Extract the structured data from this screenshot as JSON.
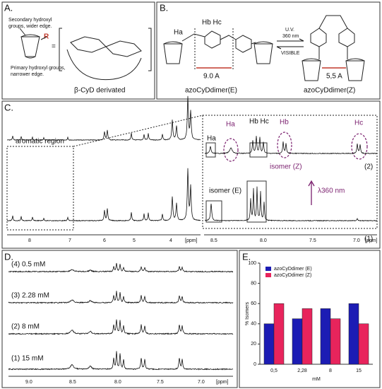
{
  "panel_a": {
    "label": "A.",
    "top_note": [
      "Secondary hydroxyl",
      "groups, wider edge."
    ],
    "substituent": "R",
    "equals": "=",
    "bottom_note": [
      "Primary hydroxyl groups,",
      "narrower edge."
    ],
    "caption": "β-CyD derivated"
  },
  "panel_b": {
    "label": "B.",
    "proton_a": "Ha",
    "protons_bc": "Hb Hc",
    "distance_e": "9.0 A",
    "name_e": "azoCyDdimer(E)",
    "forward": [
      "U.V.",
      "360 nm"
    ],
    "backward": "VISIBLE",
    "distance_z": "5,5 A",
    "name_z": "azoCyDdimer(Z)"
  },
  "panel_c": {
    "label": "C.",
    "region": "aromatic region",
    "left_ticks": [
      "8",
      "7",
      "6",
      "5",
      "4",
      "[ppm]"
    ],
    "right_ticks": [
      "8.5",
      "8.0",
      "7.5",
      "7.0",
      "[ppm]"
    ],
    "peak_labels": {
      "ha_e": "Ha",
      "ha_z": "Ha",
      "hbhc_e": "Hb Hc",
      "hb_z": "Hb",
      "hc_z": "Hc"
    },
    "isomer_z": "isomer (Z)",
    "trace_2": "(2)",
    "isomer_e": "isomer (E)",
    "irradiation": "λ360 nm",
    "trace_1": "(1)"
  },
  "panel_d": {
    "label": "D.",
    "traces": [
      "(4) 0.5 mM",
      "(3) 2.28 mM",
      "(2) 8 mM",
      "(1) 15 mM"
    ],
    "ticks": [
      "9.0",
      "8.5",
      "8.0",
      "7.5",
      "7.0",
      "[ppm]"
    ]
  },
  "panel_e": {
    "label": "E."
  },
  "chart_data": {
    "type": "bar",
    "x_label": "mM",
    "y_label": "% Isomers",
    "categories": [
      "0,5",
      "2,28",
      "8",
      "15"
    ],
    "series": [
      {
        "name": "azoCyDdimer (E)",
        "color": "#1c1cb4",
        "values": [
          40,
          45,
          55,
          60
        ]
      },
      {
        "name": "azoCyDdimer (Z)",
        "color": "#e8245c",
        "values": [
          60,
          55,
          45,
          40
        ]
      }
    ],
    "ylim": [
      0,
      100
    ],
    "yticks": [
      0,
      20,
      40,
      60,
      80,
      100
    ],
    "legend": "top-left"
  }
}
